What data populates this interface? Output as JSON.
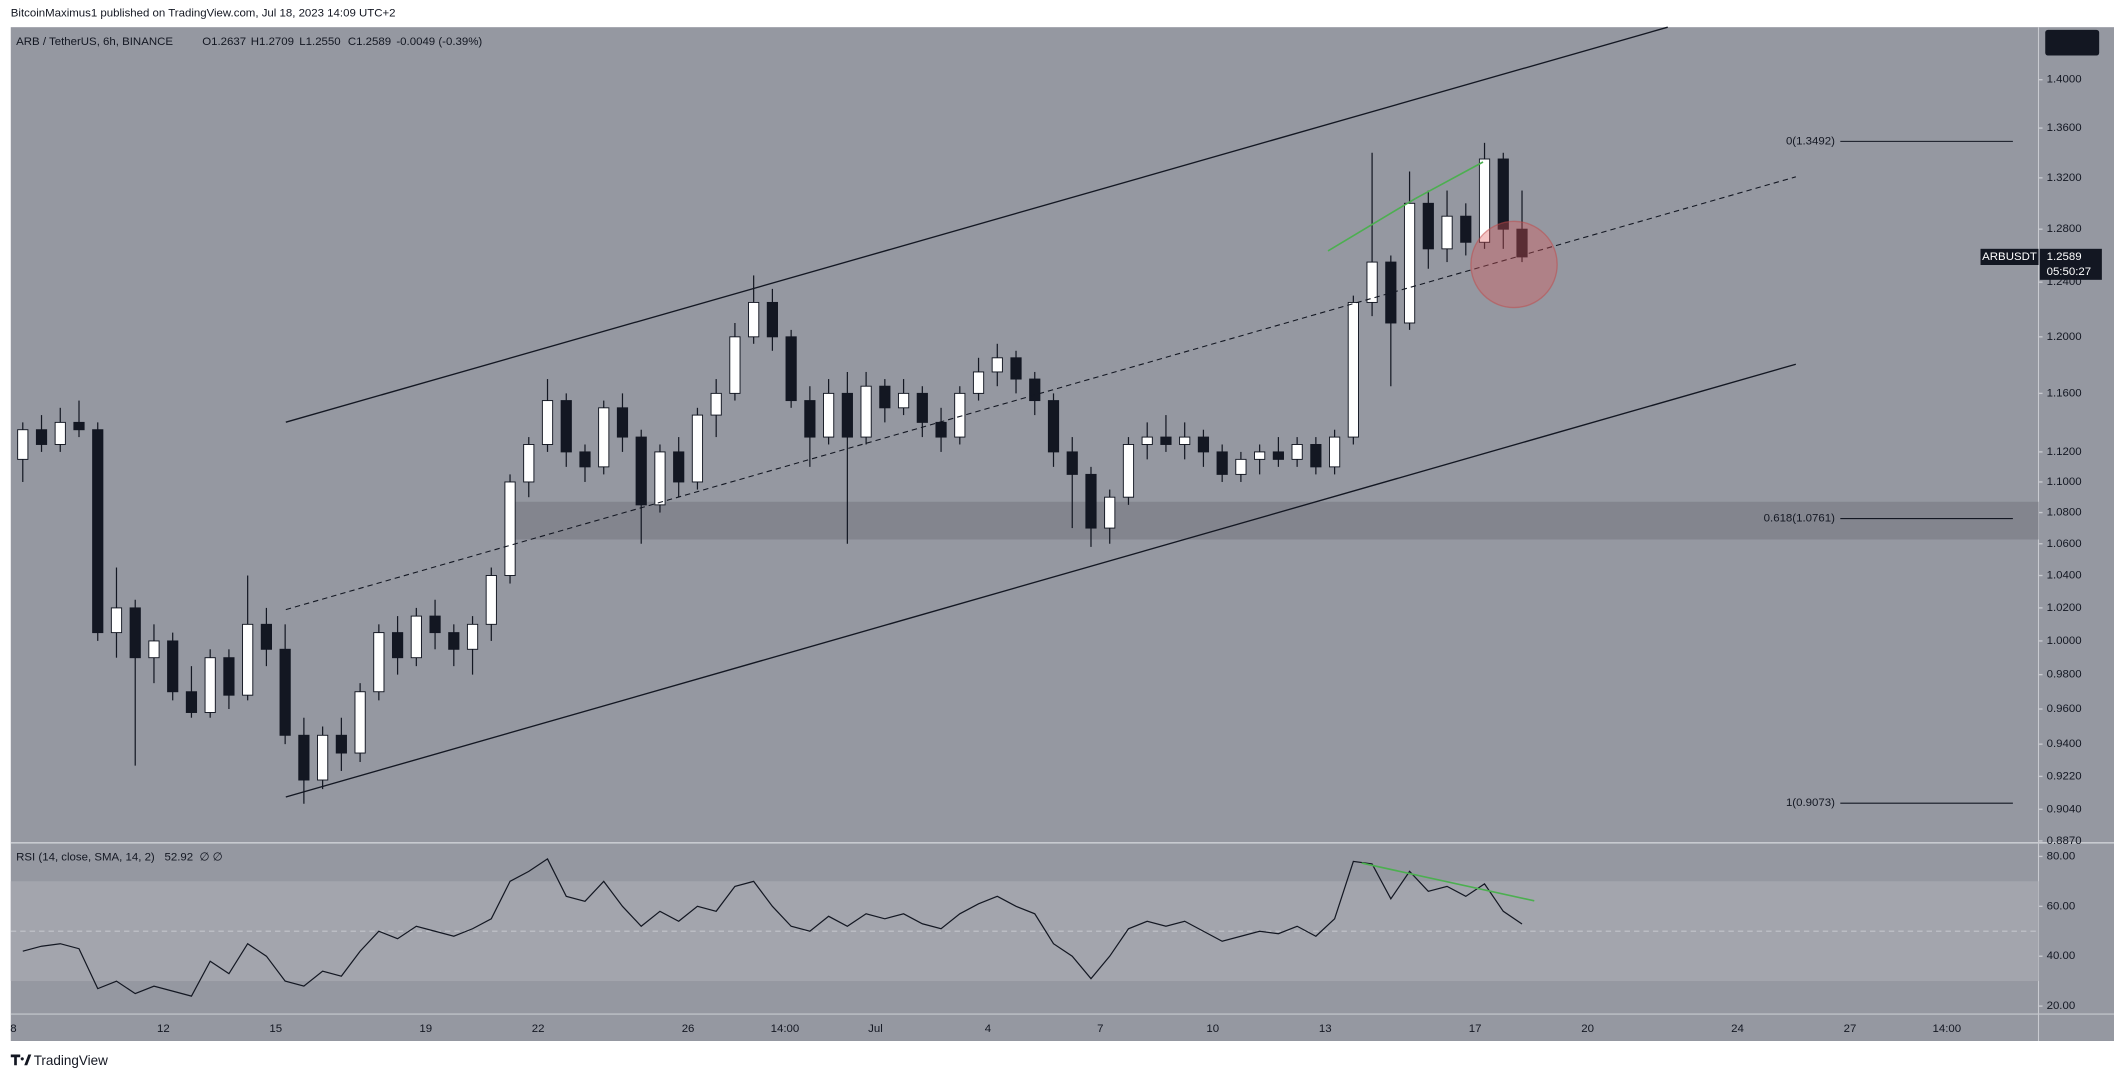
{
  "header": {
    "publisher": "BitcoinMaximus1 published on TradingView.com, Jul 18, 2023 14:09 UTC+2"
  },
  "chart_data": [
    {
      "type": "candlestick",
      "symbol": "ARB / TetherUS, 6h, BINANCE",
      "legend_values": [
        "O1.2637",
        "H1.2709",
        "L1.2550",
        "C1.2589",
        "-0.0049 (-0.39%)"
      ],
      "ticker": "ARBUSDT",
      "countdown": "05:50:27",
      "up_color": "#ffffff",
      "down_color": "#131722",
      "log_scale": true,
      "grid": false,
      "ylim": [
        0.8867,
        1.4448
      ],
      "yticks": [
        {
          "value": 1.4,
          "label": "1.4000"
        },
        {
          "value": 1.36,
          "label": "1.3600"
        },
        {
          "value": 1.32,
          "label": "1.3200"
        },
        {
          "value": 1.28,
          "label": "1.2800"
        },
        {
          "value": 1.24,
          "label": "1.2400"
        },
        {
          "value": 1.2,
          "label": "1.2000"
        },
        {
          "value": 1.16,
          "label": "1.1600"
        },
        {
          "value": 1.12,
          "label": "1.1200"
        },
        {
          "value": 1.1,
          "label": "1.1000"
        },
        {
          "value": 1.08,
          "label": "1.0800"
        },
        {
          "value": 1.06,
          "label": "1.0600"
        },
        {
          "value": 1.04,
          "label": "1.0400"
        },
        {
          "value": 1.02,
          "label": "1.0200"
        },
        {
          "value": 1.0,
          "label": "1.0000"
        },
        {
          "value": 0.98,
          "label": "0.9800"
        },
        {
          "value": 0.96,
          "label": "0.9600"
        },
        {
          "value": 0.94,
          "label": "0.9400"
        },
        {
          "value": 0.922,
          "label": "0.9220"
        },
        {
          "value": 0.904,
          "label": "0.9040"
        },
        {
          "value": 0.887,
          "label": "0.8870"
        }
      ],
      "xlim": [
        -0.14,
        108.06
      ],
      "xticks": [
        {
          "value": 0,
          "label": "8"
        },
        {
          "value": 8,
          "label": "12"
        },
        {
          "value": 14,
          "label": "15"
        },
        {
          "value": 22,
          "label": "19"
        },
        {
          "value": 28,
          "label": "22"
        },
        {
          "value": 36,
          "label": "26"
        },
        {
          "value": 41.17,
          "label": "14:00"
        },
        {
          "value": 46,
          "label": "Jul"
        },
        {
          "value": 52,
          "label": "4"
        },
        {
          "value": 58,
          "label": "7"
        },
        {
          "value": 64,
          "label": "10"
        },
        {
          "value": 70,
          "label": "13"
        },
        {
          "value": 78,
          "label": "17"
        },
        {
          "value": 84,
          "label": "20"
        },
        {
          "value": 92,
          "label": "24"
        },
        {
          "value": 98,
          "label": "27"
        },
        {
          "value": 103.17,
          "label": "14:00"
        }
      ],
      "fib_levels": [
        {
          "value": 1.3492,
          "label": "0(1.3492)"
        },
        {
          "value": 1.0761,
          "label": "0.618(1.0761)"
        },
        {
          "value": 0.9073,
          "label": "1(0.9073)"
        }
      ],
      "candles": [
        [
          1.115,
          1.14,
          1.1,
          1.135
        ],
        [
          1.135,
          1.145,
          1.12,
          1.125
        ],
        [
          1.125,
          1.15,
          1.12,
          1.14
        ],
        [
          1.14,
          1.155,
          1.13,
          1.135
        ],
        [
          1.135,
          1.14,
          1.0,
          1.005
        ],
        [
          1.005,
          1.045,
          0.99,
          1.02
        ],
        [
          1.02,
          1.025,
          0.928,
          0.99
        ],
        [
          0.99,
          1.01,
          0.975,
          1.0
        ],
        [
          1.0,
          1.005,
          0.965,
          0.97
        ],
        [
          0.97,
          0.985,
          0.955,
          0.958
        ],
        [
          0.958,
          0.995,
          0.955,
          0.99
        ],
        [
          0.99,
          0.995,
          0.96,
          0.968
        ],
        [
          0.968,
          1.04,
          0.965,
          1.01
        ],
        [
          1.01,
          1.02,
          0.985,
          0.995
        ],
        [
          0.995,
          1.01,
          0.94,
          0.945
        ],
        [
          0.945,
          0.955,
          0.907,
          0.92
        ],
        [
          0.92,
          0.95,
          0.915,
          0.945
        ],
        [
          0.945,
          0.955,
          0.925,
          0.935
        ],
        [
          0.935,
          0.975,
          0.93,
          0.97
        ],
        [
          0.97,
          1.01,
          0.965,
          1.005
        ],
        [
          1.005,
          1.015,
          0.98,
          0.99
        ],
        [
          0.99,
          1.02,
          0.985,
          1.015
        ],
        [
          1.015,
          1.025,
          0.995,
          1.005
        ],
        [
          1.005,
          1.01,
          0.985,
          0.995
        ],
        [
          0.995,
          1.015,
          0.98,
          1.01
        ],
        [
          1.01,
          1.045,
          1.0,
          1.04
        ],
        [
          1.04,
          1.105,
          1.035,
          1.1
        ],
        [
          1.1,
          1.13,
          1.09,
          1.125
        ],
        [
          1.125,
          1.17,
          1.12,
          1.155
        ],
        [
          1.155,
          1.16,
          1.11,
          1.12
        ],
        [
          1.12,
          1.125,
          1.1,
          1.11
        ],
        [
          1.11,
          1.155,
          1.105,
          1.15
        ],
        [
          1.15,
          1.16,
          1.12,
          1.13
        ],
        [
          1.13,
          1.135,
          1.06,
          1.085
        ],
        [
          1.085,
          1.125,
          1.08,
          1.12
        ],
        [
          1.12,
          1.13,
          1.09,
          1.1
        ],
        [
          1.1,
          1.15,
          1.095,
          1.145
        ],
        [
          1.145,
          1.17,
          1.13,
          1.16
        ],
        [
          1.16,
          1.21,
          1.155,
          1.2
        ],
        [
          1.2,
          1.245,
          1.195,
          1.225
        ],
        [
          1.225,
          1.235,
          1.19,
          1.2
        ],
        [
          1.2,
          1.205,
          1.15,
          1.155
        ],
        [
          1.155,
          1.165,
          1.11,
          1.13
        ],
        [
          1.13,
          1.17,
          1.125,
          1.16
        ],
        [
          1.16,
          1.175,
          1.06,
          1.13
        ],
        [
          1.13,
          1.175,
          1.125,
          1.165
        ],
        [
          1.165,
          1.17,
          1.14,
          1.15
        ],
        [
          1.15,
          1.17,
          1.145,
          1.16
        ],
        [
          1.16,
          1.165,
          1.13,
          1.14
        ],
        [
          1.14,
          1.15,
          1.12,
          1.13
        ],
        [
          1.13,
          1.165,
          1.125,
          1.16
        ],
        [
          1.16,
          1.185,
          1.155,
          1.175
        ],
        [
          1.175,
          1.195,
          1.165,
          1.185
        ],
        [
          1.185,
          1.19,
          1.16,
          1.17
        ],
        [
          1.17,
          1.175,
          1.145,
          1.155
        ],
        [
          1.155,
          1.16,
          1.11,
          1.12
        ],
        [
          1.12,
          1.13,
          1.07,
          1.105
        ],
        [
          1.105,
          1.11,
          1.058,
          1.07
        ],
        [
          1.07,
          1.095,
          1.06,
          1.09
        ],
        [
          1.09,
          1.13,
          1.085,
          1.125
        ],
        [
          1.125,
          1.14,
          1.115,
          1.13
        ],
        [
          1.13,
          1.145,
          1.12,
          1.125
        ],
        [
          1.125,
          1.14,
          1.115,
          1.13
        ],
        [
          1.13,
          1.135,
          1.11,
          1.12
        ],
        [
          1.12,
          1.125,
          1.1,
          1.105
        ],
        [
          1.105,
          1.12,
          1.1,
          1.115
        ],
        [
          1.115,
          1.125,
          1.105,
          1.12
        ],
        [
          1.12,
          1.13,
          1.11,
          1.115
        ],
        [
          1.115,
          1.13,
          1.11,
          1.125
        ],
        [
          1.125,
          1.13,
          1.105,
          1.11
        ],
        [
          1.11,
          1.135,
          1.105,
          1.13
        ],
        [
          1.13,
          1.23,
          1.125,
          1.225
        ],
        [
          1.225,
          1.34,
          1.215,
          1.255
        ],
        [
          1.255,
          1.26,
          1.165,
          1.21
        ],
        [
          1.21,
          1.325,
          1.205,
          1.3
        ],
        [
          1.3,
          1.31,
          1.25,
          1.265
        ],
        [
          1.265,
          1.31,
          1.255,
          1.29
        ],
        [
          1.29,
          1.3,
          1.26,
          1.27
        ],
        [
          1.27,
          1.348,
          1.265,
          1.335
        ],
        [
          1.335,
          1.34,
          1.265,
          1.28
        ],
        [
          1.28,
          1.31,
          1.255,
          1.2589
        ]
      ]
    },
    {
      "type": "line",
      "title": "RSI (14, close, SMA, 14, 2)",
      "flags": "∅ ∅",
      "color": "#131722",
      "ylim": [
        16.8,
        84.9
      ],
      "yticks": [
        {
          "value": 80,
          "label": "80.00"
        },
        {
          "value": 60,
          "label": "60.00"
        },
        {
          "value": 40,
          "label": "40.00"
        },
        {
          "value": 20,
          "label": "20.00"
        }
      ],
      "values": [
        42,
        44,
        45,
        43,
        27,
        30,
        25,
        28,
        26,
        24,
        38,
        33,
        45,
        40,
        30,
        28,
        34,
        32,
        42,
        50,
        47,
        52,
        50,
        48,
        51,
        55,
        70,
        74,
        79,
        64,
        62,
        70,
        60,
        52,
        58,
        54,
        60,
        58,
        68,
        70,
        60,
        52,
        50,
        56,
        52,
        57,
        55,
        57,
        53,
        51,
        57,
        61,
        64,
        60,
        57,
        45,
        40,
        31,
        40,
        51,
        54,
        52,
        54,
        50,
        46,
        48,
        50,
        49,
        52,
        48,
        55,
        78,
        77,
        63,
        74,
        66,
        68,
        64,
        69,
        58,
        52.92
      ]
    }
  ],
  "footer": {
    "brand": "TradingView"
  }
}
